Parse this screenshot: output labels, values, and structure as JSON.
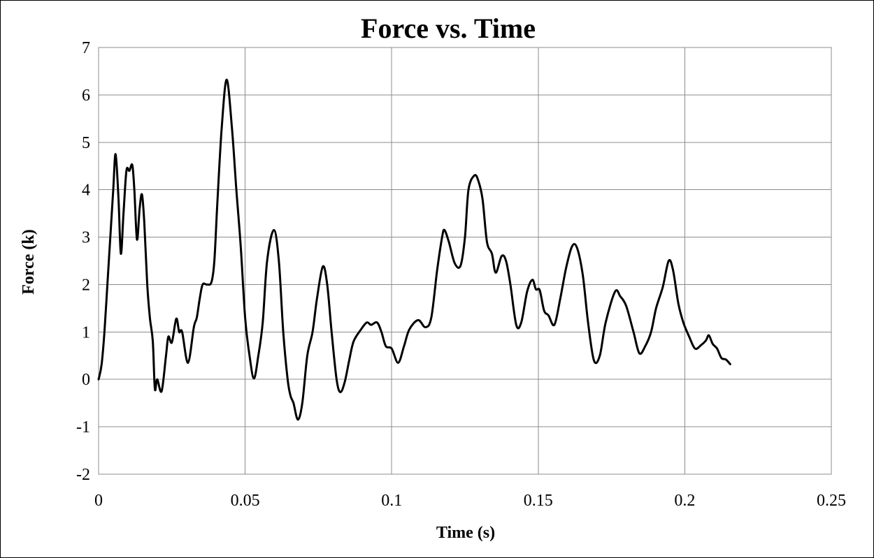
{
  "chart_data": {
    "type": "line",
    "title": "Force vs. Time",
    "xlabel": "Time (s)",
    "ylabel": "Force (k)",
    "xlim": [
      0,
      0.25
    ],
    "ylim": [
      -2,
      7
    ],
    "x_ticks": [
      0,
      0.05,
      0.1,
      0.15,
      0.2,
      0.25
    ],
    "x_tick_labels": [
      "0",
      "0.05",
      "0.1",
      "0.15",
      "0.2",
      "0.25"
    ],
    "y_ticks": [
      -2,
      -1,
      0,
      1,
      2,
      3,
      4,
      5,
      6,
      7
    ],
    "y_tick_labels": [
      "-2",
      "-1",
      "0",
      "1",
      "2",
      "3",
      "4",
      "5",
      "6",
      "7"
    ],
    "grid": true,
    "legend": "none",
    "series": [
      {
        "color": "#000000",
        "points": [
          [
            0.0,
            0.0
          ],
          [
            0.001,
            0.3
          ],
          [
            0.002,
            1.0
          ],
          [
            0.003,
            2.0
          ],
          [
            0.004,
            3.0
          ],
          [
            0.005,
            4.0
          ],
          [
            0.0058,
            4.75
          ],
          [
            0.0068,
            3.8
          ],
          [
            0.0076,
            2.65
          ],
          [
            0.0085,
            3.5
          ],
          [
            0.0095,
            4.4
          ],
          [
            0.0105,
            4.4
          ],
          [
            0.0115,
            4.52
          ],
          [
            0.0122,
            4.0
          ],
          [
            0.0131,
            2.95
          ],
          [
            0.014,
            3.6
          ],
          [
            0.0148,
            3.9
          ],
          [
            0.0156,
            3.3
          ],
          [
            0.0166,
            2.0
          ],
          [
            0.0175,
            1.3
          ],
          [
            0.0185,
            0.8
          ],
          [
            0.0192,
            -0.2
          ],
          [
            0.02,
            0.0
          ],
          [
            0.0215,
            -0.25
          ],
          [
            0.023,
            0.5
          ],
          [
            0.0238,
            0.9
          ],
          [
            0.025,
            0.78
          ],
          [
            0.0265,
            1.28
          ],
          [
            0.0275,
            1.0
          ],
          [
            0.0285,
            1.0
          ],
          [
            0.0305,
            0.35
          ],
          [
            0.0325,
            1.1
          ],
          [
            0.0335,
            1.3
          ],
          [
            0.0345,
            1.7
          ],
          [
            0.0355,
            2.0
          ],
          [
            0.037,
            2.0
          ],
          [
            0.0385,
            2.05
          ],
          [
            0.0395,
            2.5
          ],
          [
            0.0405,
            3.7
          ],
          [
            0.042,
            5.3
          ],
          [
            0.0437,
            6.32
          ],
          [
            0.0455,
            5.3
          ],
          [
            0.047,
            4.0
          ],
          [
            0.0485,
            2.8
          ],
          [
            0.05,
            1.3
          ],
          [
            0.0515,
            0.5
          ],
          [
            0.053,
            0.02
          ],
          [
            0.0545,
            0.5
          ],
          [
            0.056,
            1.2
          ],
          [
            0.0575,
            2.5
          ],
          [
            0.0598,
            3.15
          ],
          [
            0.0615,
            2.5
          ],
          [
            0.063,
            1.0
          ],
          [
            0.0645,
            0.0
          ],
          [
            0.0655,
            -0.35
          ],
          [
            0.0665,
            -0.5
          ],
          [
            0.068,
            -0.85
          ],
          [
            0.0695,
            -0.5
          ],
          [
            0.0712,
            0.5
          ],
          [
            0.073,
            1.0
          ],
          [
            0.0745,
            1.7
          ],
          [
            0.0765,
            2.38
          ],
          [
            0.078,
            2.0
          ],
          [
            0.0795,
            1.0
          ],
          [
            0.0812,
            0.0
          ],
          [
            0.0825,
            -0.27
          ],
          [
            0.084,
            -0.05
          ],
          [
            0.0855,
            0.4
          ],
          [
            0.087,
            0.8
          ],
          [
            0.0895,
            1.05
          ],
          [
            0.0915,
            1.2
          ],
          [
            0.093,
            1.15
          ],
          [
            0.095,
            1.2
          ],
          [
            0.0965,
            1.0
          ],
          [
            0.098,
            0.7
          ],
          [
            0.1,
            0.65
          ],
          [
            0.1022,
            0.35
          ],
          [
            0.1042,
            0.7
          ],
          [
            0.106,
            1.05
          ],
          [
            0.109,
            1.25
          ],
          [
            0.1115,
            1.1
          ],
          [
            0.1135,
            1.3
          ],
          [
            0.1155,
            2.3
          ],
          [
            0.1172,
            3.0
          ],
          [
            0.118,
            3.15
          ],
          [
            0.1195,
            2.9
          ],
          [
            0.1215,
            2.45
          ],
          [
            0.1235,
            2.4
          ],
          [
            0.125,
            3.0
          ],
          [
            0.1262,
            4.0
          ],
          [
            0.1282,
            4.3
          ],
          [
            0.1295,
            4.2
          ],
          [
            0.131,
            3.8
          ],
          [
            0.1325,
            2.9
          ],
          [
            0.1342,
            2.65
          ],
          [
            0.1355,
            2.25
          ],
          [
            0.1375,
            2.6
          ],
          [
            0.139,
            2.5
          ],
          [
            0.1405,
            2.0
          ],
          [
            0.1425,
            1.15
          ],
          [
            0.1442,
            1.2
          ],
          [
            0.1462,
            1.85
          ],
          [
            0.148,
            2.1
          ],
          [
            0.1492,
            1.9
          ],
          [
            0.1505,
            1.88
          ],
          [
            0.152,
            1.45
          ],
          [
            0.1535,
            1.35
          ],
          [
            0.1555,
            1.15
          ],
          [
            0.1575,
            1.7
          ],
          [
            0.1595,
            2.35
          ],
          [
            0.1615,
            2.8
          ],
          [
            0.1632,
            2.78
          ],
          [
            0.1652,
            2.2
          ],
          [
            0.167,
            1.2
          ],
          [
            0.169,
            0.4
          ],
          [
            0.171,
            0.5
          ],
          [
            0.173,
            1.2
          ],
          [
            0.1762,
            1.85
          ],
          [
            0.178,
            1.75
          ],
          [
            0.18,
            1.55
          ],
          [
            0.1825,
            1.0
          ],
          [
            0.1845,
            0.55
          ],
          [
            0.1865,
            0.7
          ],
          [
            0.1885,
            1.0
          ],
          [
            0.1902,
            1.5
          ],
          [
            0.1925,
            1.95
          ],
          [
            0.1945,
            2.5
          ],
          [
            0.196,
            2.3
          ],
          [
            0.1978,
            1.6
          ],
          [
            0.1995,
            1.2
          ],
          [
            0.2015,
            0.9
          ],
          [
            0.2035,
            0.65
          ],
          [
            0.2055,
            0.72
          ],
          [
            0.2072,
            0.82
          ],
          [
            0.2082,
            0.93
          ],
          [
            0.2095,
            0.75
          ],
          [
            0.211,
            0.65
          ],
          [
            0.2125,
            0.45
          ],
          [
            0.214,
            0.42
          ],
          [
            0.2155,
            0.32
          ]
        ]
      }
    ]
  }
}
